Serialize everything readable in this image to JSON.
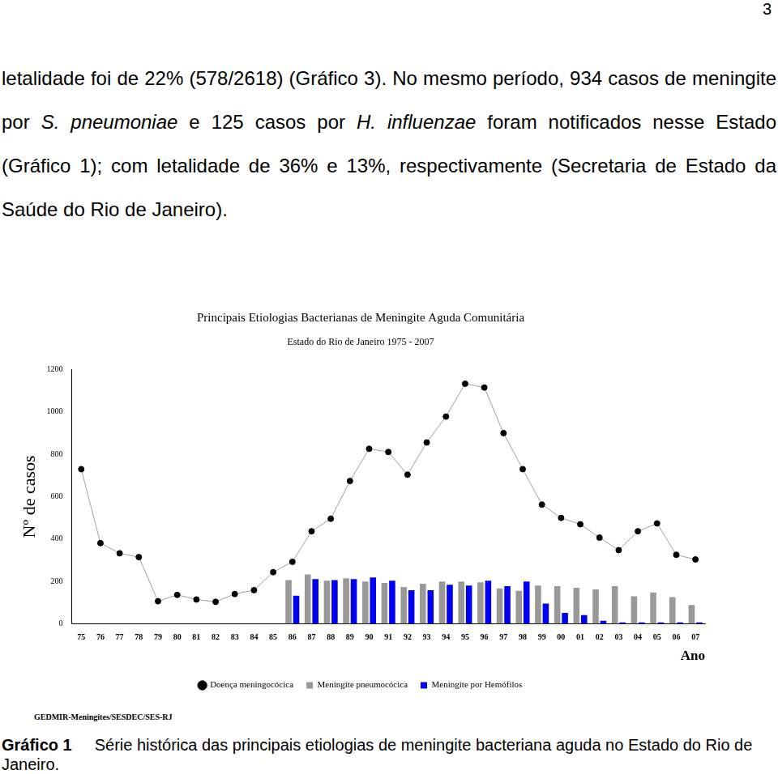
{
  "page_number": "3",
  "paragraph": [
    {
      "text": "letalidade foi de 22% (578/2618) (Gráfico 3). No mesmo período, 934 casos de meningite por "
    },
    {
      "text": "S. pneumoniae",
      "italic": true
    },
    {
      "text": " e 125 casos por "
    },
    {
      "text": "H. influenzae",
      "italic": true
    },
    {
      "text": " foram notificados nesse Estado (Gráfico 1); com letalidade de 36% e 13%, respectivamente (Secretaria de Estado da Saúde do Rio de Janeiro)."
    }
  ],
  "chart_data": {
    "type": "bar",
    "title": "Principais Etiologias Bacterianas de Meningite Aguda Comunitária",
    "subtitle": "Estado do Rio de Janeiro 1975 - 2007",
    "y_label": "Nº de casos",
    "x_label": "Ano",
    "categories": [
      "75",
      "76",
      "77",
      "78",
      "79",
      "80",
      "81",
      "82",
      "83",
      "84",
      "85",
      "86",
      "87",
      "88",
      "89",
      "90",
      "91",
      "92",
      "93",
      "94",
      "95",
      "96",
      "97",
      "98",
      "99",
      "00",
      "01",
      "02",
      "03",
      "04",
      "05",
      "06",
      "07"
    ],
    "series": [
      {
        "name": "Doença meningocócica",
        "type": "line",
        "color": "#000000",
        "marker": "circle",
        "values": [
          730,
          381,
          333,
          315,
          107,
          137,
          115,
          104,
          141,
          159,
          244,
          293,
          437,
          496,
          674,
          826,
          811,
          704,
          856,
          978,
          1133,
          1115,
          900,
          730,
          563,
          500,
          470,
          407,
          348,
          437,
          474,
          326,
          304
        ]
      },
      {
        "name": "Meningite pneumocócica",
        "type": "bar",
        "color": "#999999",
        "values": [
          null,
          null,
          null,
          null,
          null,
          null,
          null,
          null,
          null,
          null,
          null,
          207,
          233,
          204,
          215,
          200,
          193,
          174,
          189,
          200,
          200,
          196,
          167,
          156,
          181,
          178,
          170,
          163,
          178,
          130,
          148,
          126,
          89
        ]
      },
      {
        "name": "Meningite por Hemófilos",
        "type": "bar",
        "color": "#0000ee",
        "values": [
          null,
          null,
          null,
          null,
          null,
          null,
          null,
          null,
          null,
          null,
          null,
          133,
          211,
          207,
          211,
          219,
          204,
          159,
          159,
          185,
          181,
          204,
          178,
          200,
          96,
          52,
          41,
          15,
          7,
          7,
          7,
          7,
          7
        ]
      }
    ],
    "ylim": [
      0,
      1200
    ],
    "yticks": [
      0,
      200,
      400,
      600,
      800,
      1000,
      1200
    ],
    "grid": false,
    "legend": "bottom"
  },
  "source": "GEDMIR-Meningites/SESDEC/SES-RJ",
  "caption": {
    "label": "Gráfico 1",
    "text": "Série histórica das principais etiologias de meningite bacteriana aguda no Estado do Rio de Janeiro."
  }
}
